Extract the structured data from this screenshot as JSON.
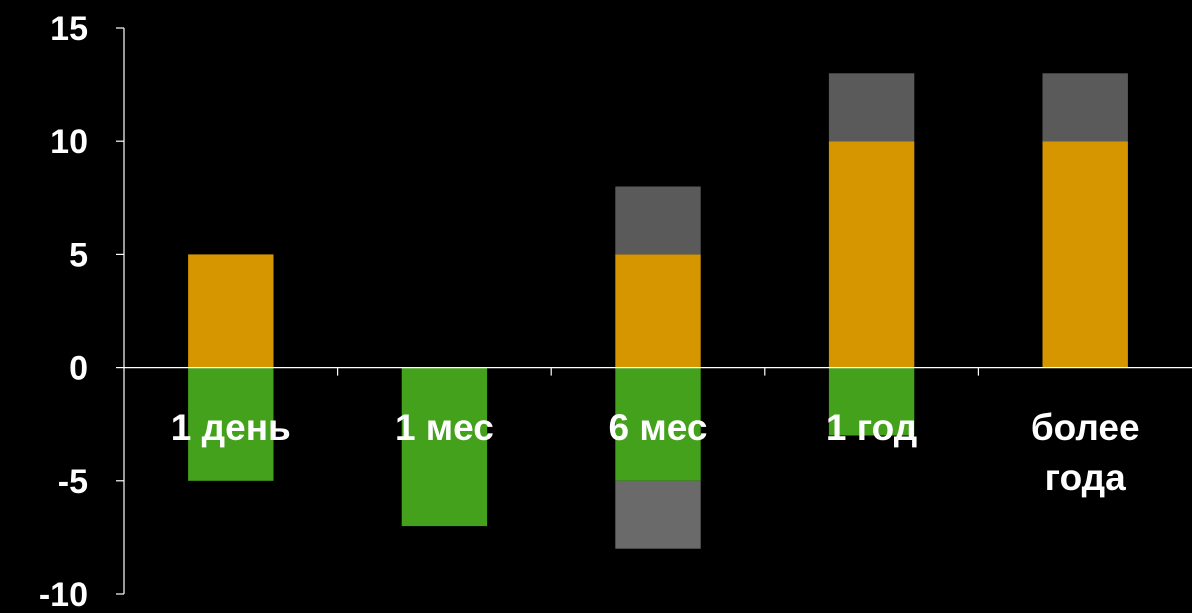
{
  "chart_data": {
    "type": "bar",
    "stacked": true,
    "categories": [
      "1 день",
      "1 мес",
      "6 мес",
      "1 год",
      "более года"
    ],
    "category_lines": [
      [
        "1 день"
      ],
      [
        "1 мес"
      ],
      [
        "6 мес"
      ],
      [
        "1 год"
      ],
      [
        "более",
        "года"
      ]
    ],
    "series": [
      {
        "color": "#D69600",
        "values": [
          5,
          0,
          5,
          10,
          10
        ]
      },
      {
        "color": "#5A5A5A",
        "values": [
          0,
          0,
          3,
          3,
          3
        ]
      },
      {
        "color": "#44A11C",
        "values": [
          -5,
          -7,
          -5,
          -3,
          0
        ]
      },
      {
        "color": "#6A6A6A",
        "values": [
          0,
          0,
          -3,
          0,
          0
        ]
      }
    ],
    "ylim": [
      -10,
      15
    ],
    "yticks": [
      -10,
      -5,
      0,
      5,
      10,
      15
    ],
    "ytick_labels": [
      "-10",
      "-5",
      "0",
      "5",
      "10",
      "15"
    ],
    "grid": false,
    "legend": "none",
    "title": "",
    "xlabel": "",
    "ylabel": ""
  }
}
